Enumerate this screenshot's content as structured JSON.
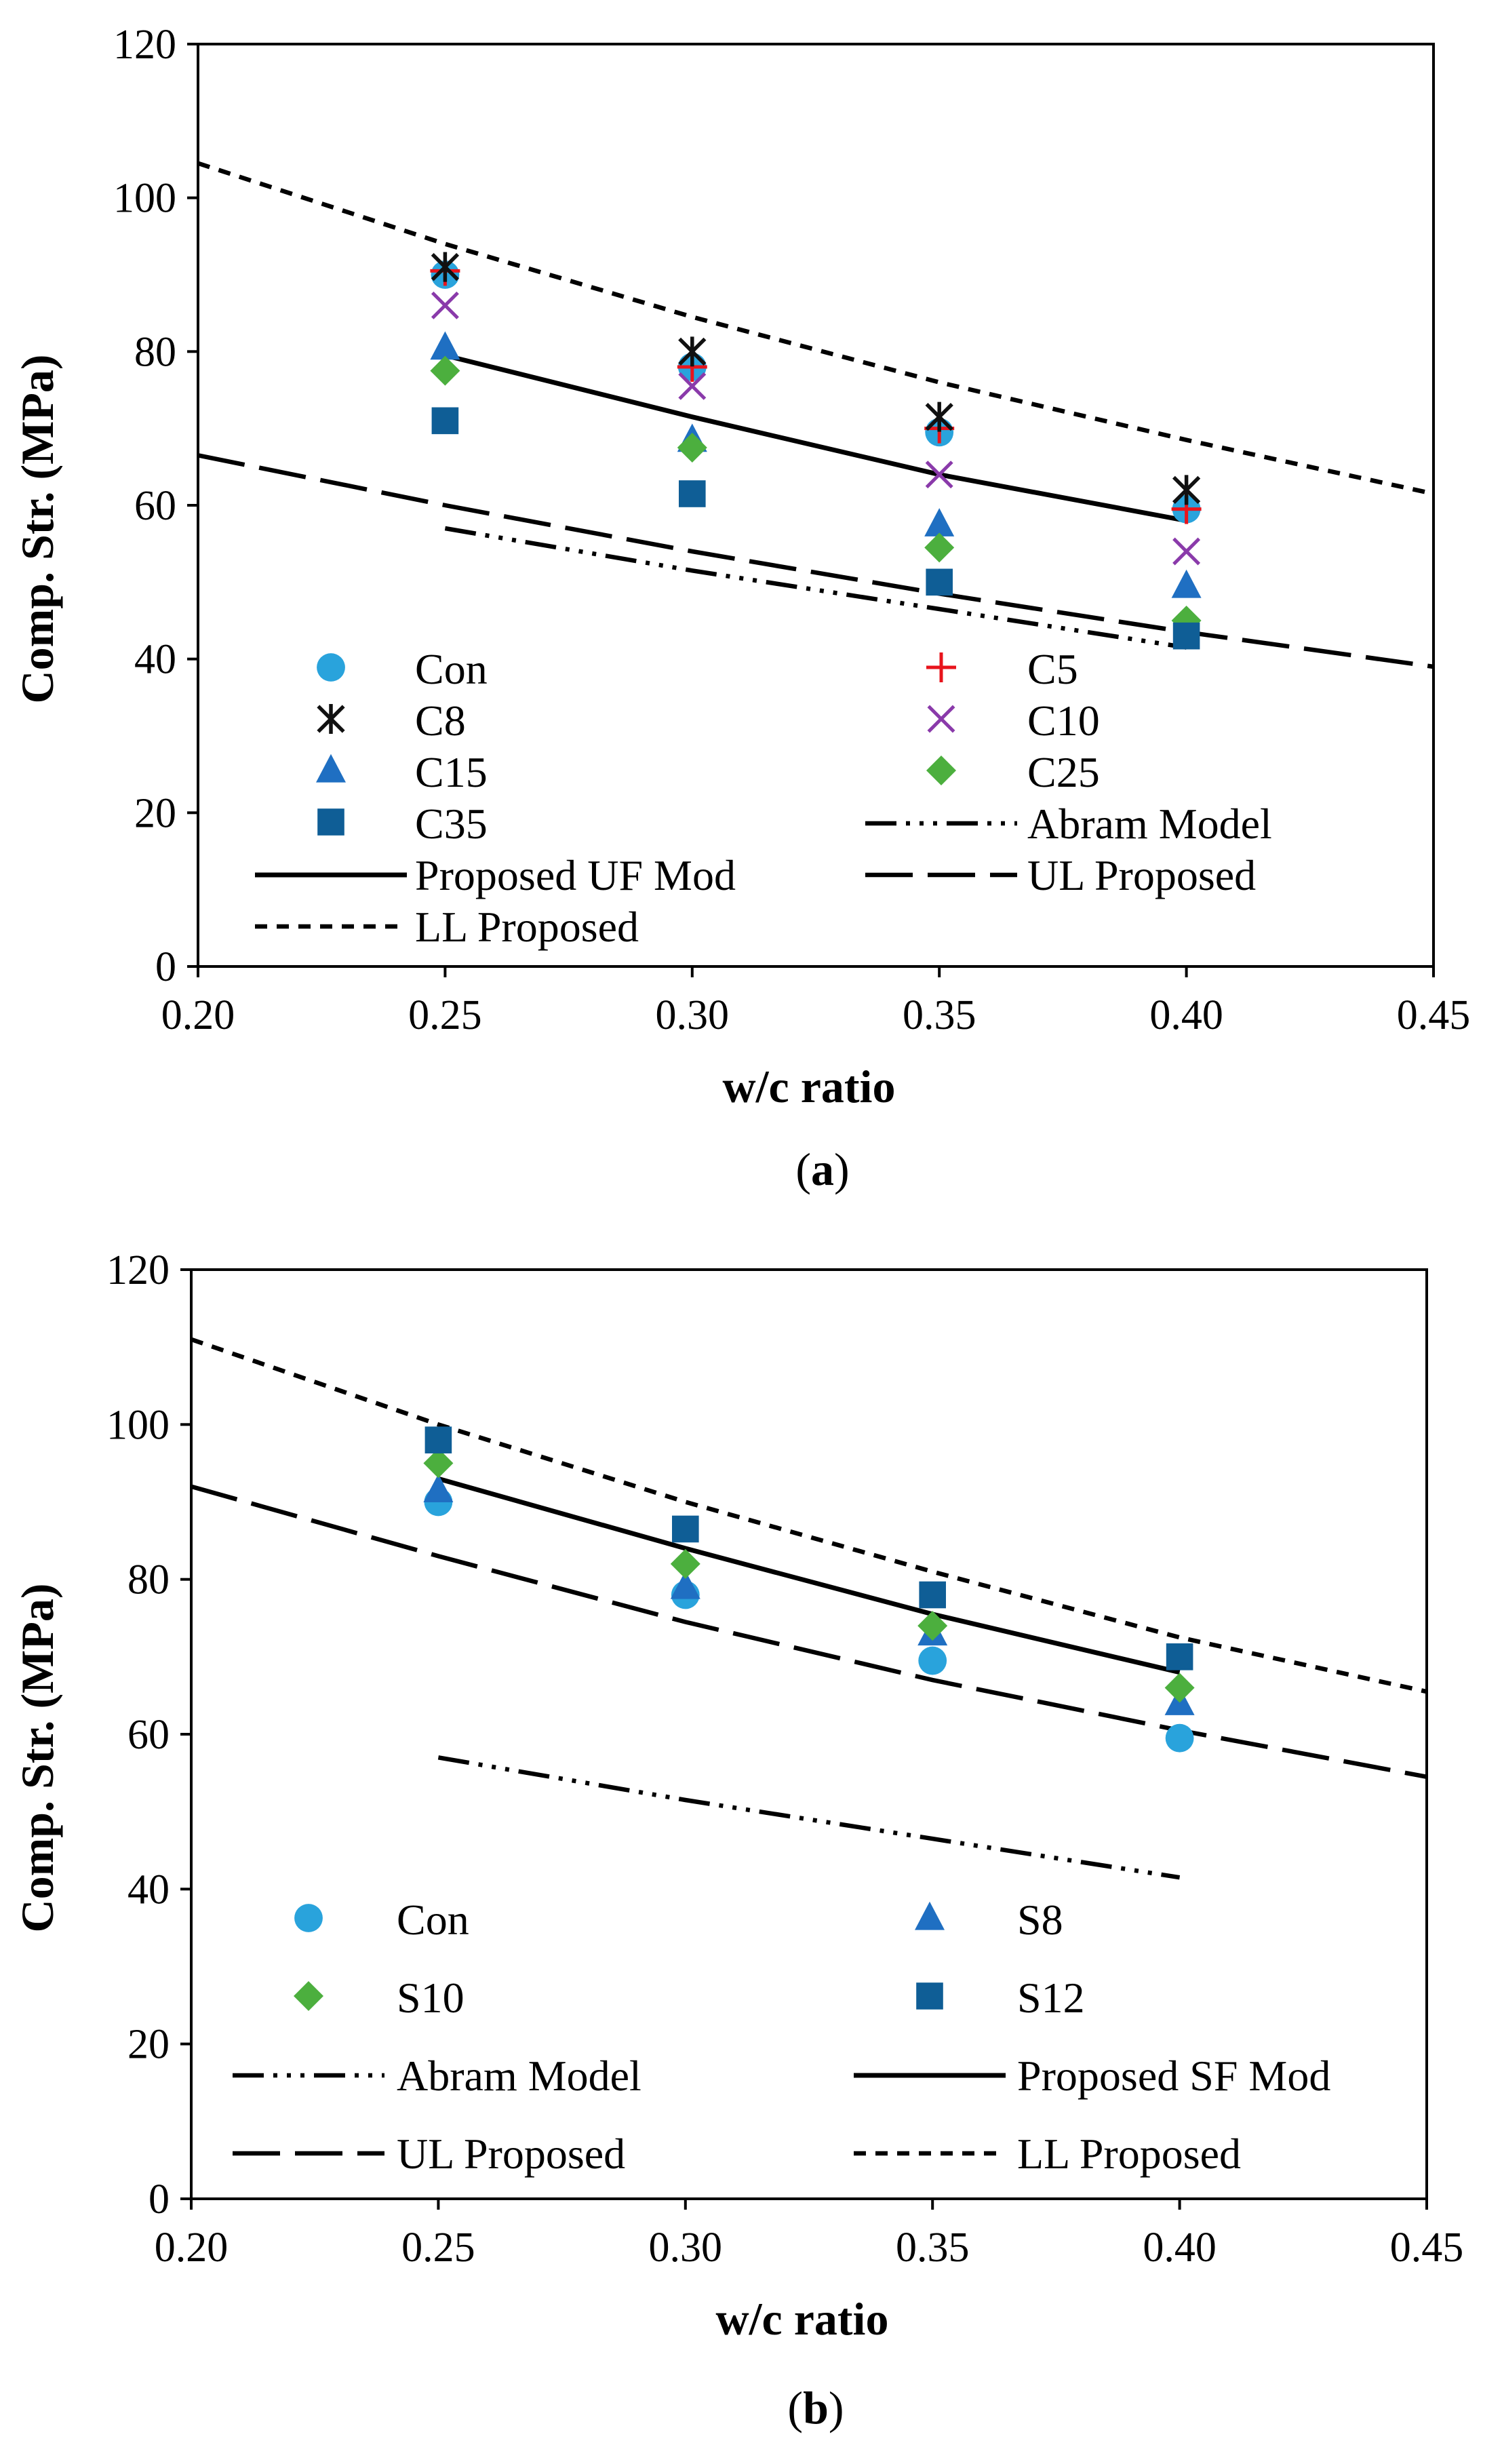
{
  "colors": {
    "Con": "#29a3dc",
    "C5": "#e8141c",
    "C8": "#111111",
    "C10": "#8a3aaa",
    "C15": "#1f6fc2",
    "C25": "#4caf3e",
    "C35": "#0f5e96",
    "S8": "#1f6fc2",
    "S10": "#4caf3e",
    "S12": "#0f5e96"
  },
  "chart_data": [
    {
      "type": "scatter",
      "panel_label": "a",
      "title": "",
      "xlabel": "w/c ratio",
      "ylabel": "Comp. Str. (MPa)",
      "xlim": [
        0.2,
        0.45
      ],
      "ylim": [
        0,
        120
      ],
      "x_ticks": [
        "0.20",
        "0.25",
        "0.30",
        "0.35",
        "0.40",
        "0.45"
      ],
      "y_ticks": [
        "0",
        "20",
        "40",
        "60",
        "80",
        "100",
        "120"
      ],
      "legend_position": "bottom-left",
      "legend_columns": 2,
      "series": [
        {
          "name": "Con",
          "marker": "circle",
          "color": "#29a3dc",
          "x": [
            0.25,
            0.3,
            0.35,
            0.4
          ],
          "y": [
            90,
            78,
            69.5,
            59.5
          ]
        },
        {
          "name": "C5",
          "marker": "plus",
          "color": "#e8141c",
          "x": [
            0.25,
            0.3,
            0.35,
            0.4
          ],
          "y": [
            90.5,
            78,
            70,
            59.5
          ]
        },
        {
          "name": "C8",
          "marker": "star",
          "color": "#111111",
          "x": [
            0.25,
            0.3,
            0.35,
            0.4
          ],
          "y": [
            91,
            80,
            71.5,
            62
          ]
        },
        {
          "name": "C10",
          "marker": "x",
          "color": "#8a3aaa",
          "x": [
            0.25,
            0.3,
            0.35,
            0.4
          ],
          "y": [
            86,
            75.5,
            64,
            54
          ]
        },
        {
          "name": "C15",
          "marker": "triangle",
          "color": "#1f6fc2",
          "x": [
            0.25,
            0.3,
            0.35,
            0.4
          ],
          "y": [
            80.5,
            68.5,
            57.5,
            49.5
          ]
        },
        {
          "name": "C25",
          "marker": "diamond",
          "color": "#4caf3e",
          "x": [
            0.25,
            0.3,
            0.35,
            0.4
          ],
          "y": [
            77.5,
            67.5,
            54.5,
            45
          ]
        },
        {
          "name": "C35",
          "marker": "square",
          "color": "#0f5e96",
          "x": [
            0.25,
            0.3,
            0.35,
            0.4
          ],
          "y": [
            71,
            61.5,
            50,
            43
          ]
        },
        {
          "name": "Abram Model",
          "kind": "line",
          "dash": "abram",
          "color": "#000000",
          "x": [
            0.25,
            0.3,
            0.35,
            0.4
          ],
          "y": [
            57,
            51.5,
            46.5,
            41.5
          ]
        },
        {
          "name": "Proposed UF Mod",
          "kind": "line",
          "dash": "solid",
          "color": "#000000",
          "x": [
            0.25,
            0.3,
            0.35,
            0.4
          ],
          "y": [
            79.5,
            71.5,
            64,
            58
          ]
        },
        {
          "name": "UL Proposed",
          "kind": "line",
          "dash": "long",
          "color": "#000000",
          "x": [
            0.2,
            0.25,
            0.3,
            0.35,
            0.4,
            0.45
          ],
          "y": [
            66.5,
            60,
            54,
            48.5,
            43.5,
            39
          ]
        },
        {
          "name": "LL Proposed",
          "kind": "line",
          "dash": "short",
          "color": "#000000",
          "x": [
            0.2,
            0.25,
            0.3,
            0.35,
            0.4,
            0.45
          ],
          "y": [
            104.5,
            94,
            84.5,
            76,
            68.5,
            61.5
          ]
        }
      ]
    },
    {
      "type": "scatter",
      "panel_label": "b",
      "title": "",
      "xlabel": "w/c ratio",
      "ylabel": "Comp. Str. (MPa)",
      "xlim": [
        0.2,
        0.45
      ],
      "ylim": [
        0,
        120
      ],
      "x_ticks": [
        "0.20",
        "0.25",
        "0.30",
        "0.35",
        "0.40",
        "0.45"
      ],
      "y_ticks": [
        "0",
        "20",
        "40",
        "60",
        "80",
        "100",
        "120"
      ],
      "legend_position": "bottom-left",
      "legend_columns": 2,
      "series": [
        {
          "name": "Con",
          "marker": "circle",
          "color": "#29a3dc",
          "x": [
            0.25,
            0.3,
            0.35,
            0.4
          ],
          "y": [
            90,
            78,
            69.5,
            59.5
          ]
        },
        {
          "name": "S8",
          "marker": "triangle",
          "color": "#1f6fc2",
          "x": [
            0.25,
            0.3,
            0.35,
            0.4
          ],
          "y": [
            91.5,
            79,
            73,
            64
          ]
        },
        {
          "name": "S10",
          "marker": "diamond",
          "color": "#4caf3e",
          "x": [
            0.25,
            0.3,
            0.35,
            0.4
          ],
          "y": [
            95,
            82,
            74,
            66
          ]
        },
        {
          "name": "S12",
          "marker": "square",
          "color": "#0f5e96",
          "x": [
            0.25,
            0.3,
            0.35,
            0.4
          ],
          "y": [
            98,
            86.5,
            78,
            70
          ]
        },
        {
          "name": "Abram Model",
          "kind": "line",
          "dash": "abram",
          "color": "#000000",
          "x": [
            0.25,
            0.3,
            0.35,
            0.4
          ],
          "y": [
            57,
            51.5,
            46.5,
            41.5
          ]
        },
        {
          "name": "Proposed SF Mod",
          "kind": "line",
          "dash": "solid",
          "color": "#000000",
          "x": [
            0.25,
            0.3,
            0.35,
            0.4
          ],
          "y": [
            93,
            84,
            75.5,
            68
          ]
        },
        {
          "name": "UL Proposed",
          "kind": "line",
          "dash": "long",
          "color": "#000000",
          "x": [
            0.2,
            0.25,
            0.3,
            0.35,
            0.4,
            0.45
          ],
          "y": [
            92,
            83,
            74.5,
            67,
            60.5,
            54.5
          ]
        },
        {
          "name": "LL Proposed",
          "kind": "line",
          "dash": "short",
          "color": "#000000",
          "x": [
            0.2,
            0.25,
            0.3,
            0.35,
            0.4,
            0.45
          ],
          "y": [
            111,
            100,
            90,
            81,
            72.5,
            65.5
          ]
        }
      ]
    }
  ]
}
